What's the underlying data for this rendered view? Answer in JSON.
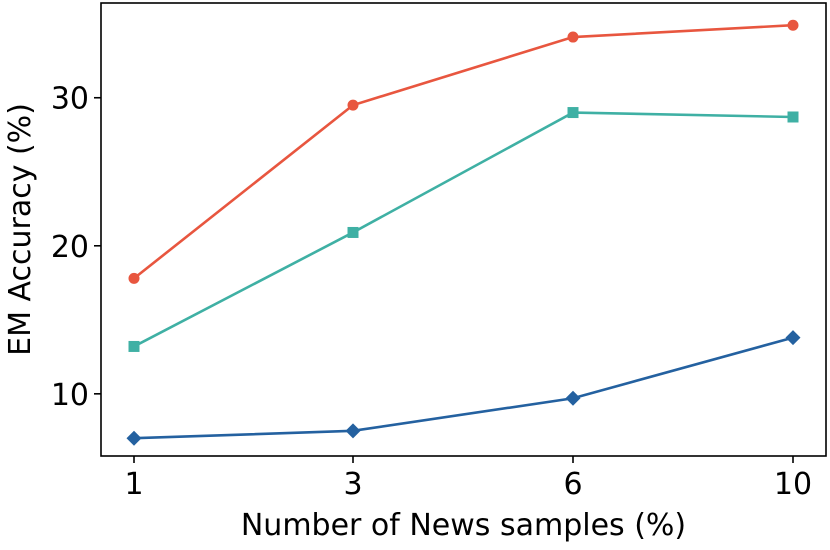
{
  "chart_data": {
    "type": "line",
    "title": "",
    "xlabel": "Number of News samples (%)",
    "ylabel": "EM Accuracy (%)",
    "x": [
      "1",
      "3",
      "6",
      "10"
    ],
    "ylim": [
      5.8,
      36.4
    ],
    "y_ticks": [
      10,
      20,
      30
    ],
    "grid": false,
    "legend": "none",
    "series": [
      {
        "color": "#e8563f",
        "marker": "circle",
        "values": [
          17.8,
          29.5,
          34.1,
          34.9
        ]
      },
      {
        "color": "#3fb0a4",
        "marker": "square",
        "values": [
          13.2,
          20.9,
          29.0,
          28.7
        ]
      },
      {
        "color": "#2461a0",
        "marker": "diamond",
        "values": [
          7.0,
          7.5,
          9.7,
          13.8
        ]
      }
    ]
  }
}
